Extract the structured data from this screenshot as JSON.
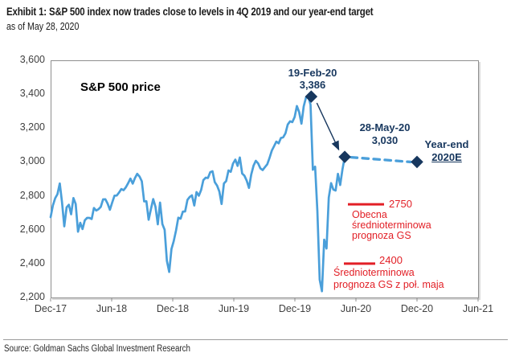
{
  "header": {
    "title": "Exhibit 1: S&P 500 index now trades close to levels in 4Q 2019 and our year-end target",
    "subtitle": "as of May 28, 2020"
  },
  "footer": {
    "source": "Source: Goldman Sachs Global Investment Research"
  },
  "chart_data": {
    "type": "line",
    "title": "S&P 500 price",
    "xlabel": "",
    "ylabel": "",
    "ylim": [
      2200,
      3600
    ],
    "ytick_step": 200,
    "ytick_labels": [
      "3,600",
      "3,400",
      "3,200",
      "3,000",
      "2,800",
      "2,600",
      "2,400",
      "2,200"
    ],
    "xtick_labels": [
      "Dec-17",
      "Jun-18",
      "Dec-18",
      "Jun-19",
      "Dec-19",
      "Jun-20",
      "Dec-20",
      "Jun-21"
    ],
    "x_axis_start": "2017-12-31",
    "x_axis_months_span": 42,
    "grid": false,
    "legend": "none",
    "series": [
      {
        "name": "S&P 500 price",
        "frequency": "weekly",
        "start_date": "2017-12-31",
        "end_date": "2020-05-28",
        "values": [
          2674,
          2743,
          2786,
          2810,
          2873,
          2762,
          2620,
          2732,
          2747,
          2691,
          2787,
          2752,
          2588,
          2641,
          2604,
          2656,
          2670,
          2670,
          2663,
          2728,
          2713,
          2721,
          2735,
          2779,
          2780,
          2755,
          2718,
          2760,
          2801,
          2802,
          2819,
          2840,
          2833,
          2850,
          2875,
          2902,
          2872,
          2905,
          2930,
          2914,
          2886,
          2767,
          2768,
          2659,
          2723,
          2781,
          2736,
          2632,
          2760,
          2633,
          2600,
          2417,
          2351,
          2486,
          2532,
          2596,
          2671,
          2665,
          2707,
          2708,
          2776,
          2793,
          2803,
          2743,
          2822,
          2801,
          2834,
          2893,
          2907,
          2905,
          2940,
          2945,
          2881,
          2860,
          2826,
          2752,
          2873,
          2887,
          2950,
          2942,
          2990,
          3014,
          2977,
          3026,
          2932,
          2919,
          2889,
          2847,
          2926,
          2979,
          3007,
          2992,
          2962,
          2952,
          2970,
          2986,
          3023,
          3067,
          3093,
          3120,
          3110,
          3141,
          3146,
          3169,
          3221,
          3240,
          3235,
          3265,
          3330,
          3295,
          3226,
          3328,
          3380,
          3386,
          3338,
          2954,
          2972,
          2711,
          2305,
          2237,
          2541,
          2489,
          2790,
          2875,
          2837,
          2831,
          2930,
          2864,
          2955,
          3030
        ]
      }
    ],
    "projection": {
      "style": "dashed",
      "from": {
        "date": "2020-05-28",
        "value": 3030
      },
      "to": {
        "date": "2020-12-31",
        "value": 3000
      },
      "label_line1": "Year-end",
      "label_line2": "2020E"
    },
    "annotations": {
      "peak": {
        "date_label": "19-Feb-20",
        "value_label": "3,386",
        "date": "2020-02-19",
        "value": 3386
      },
      "current": {
        "date_label": "28-May-20",
        "value_label": "3,030",
        "date": "2020-05-28",
        "value": 3030
      },
      "forecast_current": {
        "value_label": "2750",
        "value": 2750,
        "lines": [
          "Obecna",
          "średnioterminowa",
          "prognoza GS"
        ]
      },
      "forecast_mid_may": {
        "value_label": "2400",
        "value": 2400,
        "lines": [
          "Średnioterminowa",
          "prognoza GS z poł. maja"
        ]
      }
    },
    "colors": {
      "line": "#4a9fda",
      "navy": "#17375e",
      "red": "#e21f26",
      "axis": "#8f8f8f"
    }
  }
}
